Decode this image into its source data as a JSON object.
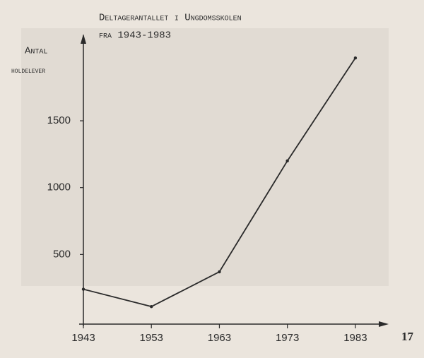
{
  "chart_data": {
    "type": "line",
    "title": "Deltagerantallet i Ungdomsskolen",
    "subtitle": "fra 1943-1983",
    "y_label_lines": [
      "Antal",
      "holdelever"
    ],
    "x": [
      1943,
      1953,
      1963,
      1973,
      1983
    ],
    "series": [
      {
        "name": "Holdelever",
        "color": "#2a2a2a",
        "values": [
          240,
          110,
          370,
          1200,
          1970
        ]
      }
    ],
    "xlim": [
      1943,
      1988
    ],
    "xticks": [
      1943,
      1953,
      1963,
      1973,
      1983
    ],
    "ylim": [
      0,
      2150
    ],
    "yticks": [
      500,
      1000,
      1500
    ],
    "grid": false
  },
  "page_number": "17"
}
